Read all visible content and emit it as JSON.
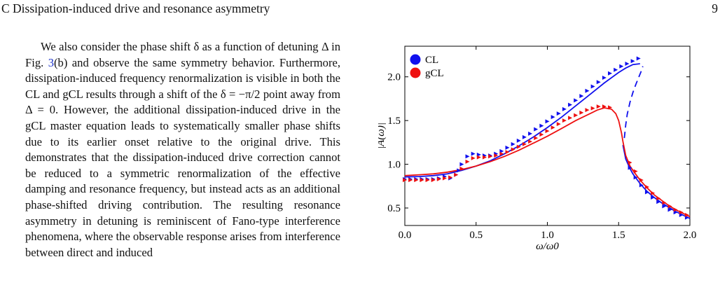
{
  "header": {
    "section": "C   Dissipation-induced drive and resonance asymmetry",
    "page_number": "9"
  },
  "paragraph": {
    "before_ref": "We also consider the phase shift δ as a function of detuning Δ in Fig. ",
    "ref": "3",
    "after_ref": "(b) and observe the same symmetry behavior. Furthermore, dissipation-induced frequency renormalization is visible in both the CL and gCL results through a shift of the δ = −π/2 point away from Δ = 0. However, the additional dissipation-induced drive in the gCL master equation leads to systematically smaller phase shifts due to its earlier onset relative to the original drive. This demonstrates that the dissipation-induced drive correction cannot be reduced to a symmetric renormalization of the effective damping and resonance frequency, but instead acts as an additional phase-shifted driving contribution. The resulting resonance asymmetry in detuning is reminiscent of Fano-type interference phenomena, where the observable response arises from interference between direct and induced"
  },
  "chart_data": {
    "type": "line",
    "xlabel": "ω/ω0",
    "ylabel": "|A(ω)|",
    "xlim": [
      0.0,
      2.0
    ],
    "ylim": [
      0.3,
      2.35
    ],
    "x_ticks": [
      "0.0",
      "0.5",
      "1.0",
      "1.5",
      "2.0"
    ],
    "x_tick_values": [
      0.0,
      0.5,
      1.0,
      1.5,
      2.0
    ],
    "y_ticks": [
      "0.5",
      "1.0",
      "1.5",
      "2.0"
    ],
    "y_tick_values": [
      0.5,
      1.0,
      1.5,
      2.0
    ],
    "grid": false,
    "legend_position": "top-left",
    "legend": [
      {
        "label": "CL",
        "color": "#1010ee"
      },
      {
        "label": "gCL",
        "color": "#ee1010"
      }
    ],
    "series": [
      {
        "name": "CL",
        "color": "#1010ee",
        "style": "solid",
        "x": [
          0.0,
          0.1,
          0.2,
          0.3,
          0.4,
          0.5,
          0.6,
          0.7,
          0.8,
          0.9,
          1.0,
          1.1,
          1.2,
          1.3,
          1.4,
          1.5,
          1.55,
          1.6,
          1.65
        ],
        "y": [
          0.855,
          0.86,
          0.87,
          0.89,
          0.93,
          0.98,
          1.04,
          1.12,
          1.21,
          1.31,
          1.42,
          1.54,
          1.67,
          1.8,
          1.93,
          2.05,
          2.1,
          2.14,
          2.15
        ]
      },
      {
        "name": "CL",
        "color": "#1010ee",
        "style": "dashed",
        "x": [
          1.54,
          1.55,
          1.56,
          1.58,
          1.6,
          1.62,
          1.64,
          1.66,
          1.67
        ],
        "y": [
          1.3,
          1.45,
          1.57,
          1.71,
          1.82,
          1.91,
          1.99,
          2.07,
          2.12
        ]
      },
      {
        "name": "CL",
        "color": "#1010ee",
        "style": "solid",
        "x": [
          1.53,
          1.55,
          1.58,
          1.6,
          1.65,
          1.7,
          1.75,
          1.8,
          1.85,
          1.9,
          1.95,
          2.0
        ],
        "y": [
          1.22,
          1.06,
          0.95,
          0.89,
          0.78,
          0.69,
          0.62,
          0.56,
          0.51,
          0.46,
          0.42,
          0.38
        ]
      },
      {
        "name": "gCL",
        "color": "#ee1010",
        "style": "solid",
        "x": [
          0.0,
          0.1,
          0.2,
          0.3,
          0.4,
          0.5,
          0.6,
          0.7,
          0.8,
          0.9,
          1.0,
          1.1,
          1.2,
          1.3,
          1.35,
          1.4,
          1.45,
          1.48,
          1.5,
          1.52,
          1.53,
          1.55,
          1.58,
          1.6,
          1.65,
          1.7,
          1.75,
          1.8,
          1.85,
          1.9,
          1.95,
          2.0
        ],
        "y": [
          0.87,
          0.88,
          0.89,
          0.91,
          0.94,
          0.98,
          1.03,
          1.09,
          1.16,
          1.24,
          1.32,
          1.41,
          1.5,
          1.58,
          1.62,
          1.645,
          1.63,
          1.58,
          1.5,
          1.36,
          1.26,
          1.1,
          0.98,
          0.93,
          0.82,
          0.73,
          0.65,
          0.59,
          0.53,
          0.48,
          0.44,
          0.4
        ]
      }
    ],
    "markers": [
      {
        "name": "CL",
        "color": "#1010ee",
        "shape": "triangle",
        "x": [
          0.0,
          0.04,
          0.08,
          0.12,
          0.16,
          0.2,
          0.24,
          0.28,
          0.32,
          0.36,
          0.38,
          0.4,
          0.44,
          0.48,
          0.52,
          0.56,
          0.6,
          0.64,
          0.68,
          0.72,
          0.76,
          0.8,
          0.84,
          0.88,
          0.92,
          0.96,
          1.0,
          1.04,
          1.08,
          1.12,
          1.16,
          1.2,
          1.24,
          1.28,
          1.32,
          1.36,
          1.4,
          1.44,
          1.48,
          1.52,
          1.56,
          1.6,
          1.64
        ],
        "y": [
          0.83,
          0.83,
          0.83,
          0.83,
          0.83,
          0.83,
          0.84,
          0.86,
          0.84,
          0.88,
          0.93,
          1.0,
          1.09,
          1.12,
          1.11,
          1.1,
          1.1,
          1.12,
          1.15,
          1.19,
          1.23,
          1.27,
          1.31,
          1.35,
          1.4,
          1.44,
          1.49,
          1.54,
          1.58,
          1.63,
          1.68,
          1.73,
          1.78,
          1.84,
          1.89,
          1.94,
          1.99,
          2.04,
          2.08,
          2.12,
          2.15,
          2.18,
          2.21
        ]
      },
      {
        "name": "CL",
        "color": "#1010ee",
        "shape": "triangle",
        "x": [
          1.58,
          1.62,
          1.66,
          1.7,
          1.74,
          1.78,
          1.82,
          1.86,
          1.9,
          1.94,
          1.98
        ],
        "y": [
          0.96,
          0.85,
          0.76,
          0.68,
          0.62,
          0.57,
          0.52,
          0.48,
          0.45,
          0.42,
          0.39
        ]
      },
      {
        "name": "gCL",
        "color": "#ee1010",
        "shape": "triangle",
        "x": [
          0.0,
          0.04,
          0.08,
          0.12,
          0.16,
          0.2,
          0.24,
          0.28,
          0.32,
          0.36,
          0.4,
          0.44,
          0.48,
          0.52,
          0.56,
          0.6,
          0.64,
          0.68,
          0.72,
          0.76,
          0.8,
          0.84,
          0.88,
          0.92,
          0.96,
          1.0,
          1.04,
          1.08,
          1.12,
          1.16,
          1.2,
          1.24,
          1.28,
          1.32,
          1.36,
          1.4,
          1.44
        ],
        "y": [
          0.82,
          0.82,
          0.82,
          0.82,
          0.82,
          0.82,
          0.83,
          0.84,
          0.85,
          0.88,
          0.95,
          1.03,
          1.07,
          1.08,
          1.08,
          1.09,
          1.1,
          1.12,
          1.14,
          1.17,
          1.2,
          1.23,
          1.26,
          1.3,
          1.34,
          1.38,
          1.42,
          1.46,
          1.5,
          1.53,
          1.56,
          1.59,
          1.62,
          1.64,
          1.66,
          1.66,
          1.65
        ]
      },
      {
        "name": "gCL",
        "color": "#ee1010",
        "shape": "triangle",
        "x": [
          1.58,
          1.62,
          1.66,
          1.7,
          1.74,
          1.78,
          1.82,
          1.86,
          1.9,
          1.94,
          1.98
        ],
        "y": [
          1.02,
          0.92,
          0.82,
          0.74,
          0.67,
          0.61,
          0.56,
          0.52,
          0.48,
          0.45,
          0.42
        ]
      }
    ]
  }
}
